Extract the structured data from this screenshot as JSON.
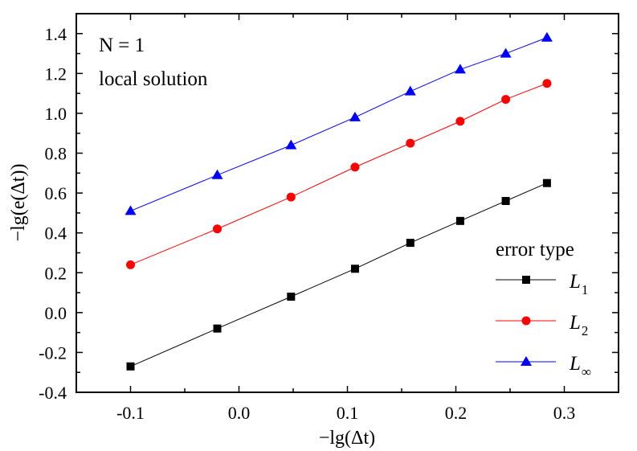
{
  "chart_data": {
    "type": "line",
    "title": "",
    "xlabel": "−lg(Δt)",
    "ylabel": "−lg(e(Δt))",
    "xlim": [
      -0.15,
      0.35
    ],
    "ylim": [
      -0.4,
      1.5
    ],
    "xticks": [
      -0.1,
      0.0,
      0.1,
      0.2,
      0.3
    ],
    "xtick_labels": [
      "-0.1",
      "0.0",
      "0.1",
      "0.2",
      "0.3"
    ],
    "yticks": [
      -0.4,
      -0.2,
      0.0,
      0.2,
      0.4,
      0.6,
      0.8,
      1.0,
      1.2,
      1.4
    ],
    "ytick_labels": [
      "-0.4",
      "-0.2",
      "0.0",
      "0.2",
      "0.4",
      "0.6",
      "0.8",
      "1.0",
      "1.2",
      "1.4"
    ],
    "grid": false,
    "annotations": [
      "N = 1",
      "local solution"
    ],
    "legend": {
      "title": "error type",
      "placement": "bottom-right"
    },
    "x": [
      -0.1,
      -0.02,
      0.048,
      0.107,
      0.158,
      0.204,
      0.246,
      0.284
    ],
    "series": [
      {
        "name": "L1",
        "color": "#000000",
        "marker": "square",
        "values": [
          -0.27,
          -0.08,
          0.08,
          0.22,
          0.35,
          0.46,
          0.56,
          0.65
        ]
      },
      {
        "name": "L2",
        "color": "#ff0000",
        "marker": "circle",
        "values": [
          0.24,
          0.42,
          0.58,
          0.73,
          0.85,
          0.96,
          1.07,
          1.15
        ]
      },
      {
        "name": "L∞",
        "color": "#0000ff",
        "marker": "triangle",
        "values": [
          0.51,
          0.69,
          0.84,
          0.98,
          1.11,
          1.22,
          1.3,
          1.38
        ]
      }
    ]
  }
}
